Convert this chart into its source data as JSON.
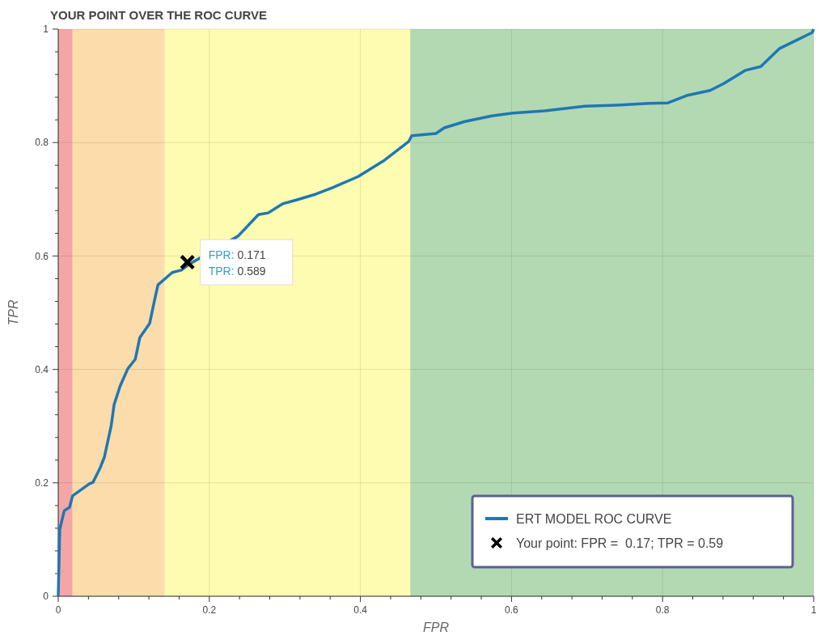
{
  "chart_data": {
    "type": "line",
    "title": "YOUR POINT OVER THE ROC CURVE",
    "xlabel": "FPR",
    "ylabel": "TPR",
    "xlim": [
      0,
      1
    ],
    "ylim": [
      0,
      1
    ],
    "xticks": [
      0,
      {
        "value": 0.04,
        "label": null
      },
      {
        "value": 0.08,
        "label": null
      },
      {
        "value": 0.12,
        "label": null
      },
      {
        "value": 0.16,
        "label": null
      },
      0.2,
      {
        "value": 0.24,
        "label": null
      },
      {
        "value": 0.28,
        "label": null
      },
      {
        "value": 0.32,
        "label": null
      },
      {
        "value": 0.36,
        "label": null
      },
      0.4,
      {
        "value": 0.44,
        "label": null
      },
      {
        "value": 0.48,
        "label": null
      },
      {
        "value": 0.52,
        "label": null
      },
      {
        "value": 0.56,
        "label": null
      },
      0.6,
      {
        "value": 0.64,
        "label": null
      },
      {
        "value": 0.68,
        "label": null
      },
      {
        "value": 0.72,
        "label": null
      },
      {
        "value": 0.76,
        "label": null
      },
      0.8,
      {
        "value": 0.84,
        "label": null
      },
      {
        "value": 0.88,
        "label": null
      },
      {
        "value": 0.92,
        "label": null
      },
      {
        "value": 0.96,
        "label": null
      },
      1
    ],
    "yticks": [
      0,
      {
        "value": 0.04,
        "label": null
      },
      {
        "value": 0.08,
        "label": null
      },
      {
        "value": 0.12,
        "label": null
      },
      {
        "value": 0.16,
        "label": null
      },
      0.2,
      {
        "value": 0.24,
        "label": null
      },
      {
        "value": 0.28,
        "label": null
      },
      {
        "value": 0.32,
        "label": null
      },
      {
        "value": 0.36,
        "label": null
      },
      0.4,
      {
        "value": 0.44,
        "label": null
      },
      {
        "value": 0.48,
        "label": null
      },
      {
        "value": 0.52,
        "label": null
      },
      {
        "value": 0.56,
        "label": null
      },
      0.6,
      {
        "value": 0.64,
        "label": null
      },
      {
        "value": 0.68,
        "label": null
      },
      {
        "value": 0.72,
        "label": null
      },
      {
        "value": 0.76,
        "label": null
      },
      0.8,
      {
        "value": 0.84,
        "label": null
      },
      {
        "value": 0.88,
        "label": null
      },
      {
        "value": 0.92,
        "label": null
      },
      {
        "value": 0.96,
        "label": null
      },
      1
    ],
    "grid": true,
    "legend": "bottom right",
    "bands": [
      {
        "axis": "x",
        "from": 0,
        "to": 0.019,
        "color": "#f4a6a6"
      },
      {
        "axis": "x",
        "from": 0.019,
        "to": 0.141,
        "color": "#fbdcaa"
      },
      {
        "axis": "x",
        "from": 0.141,
        "to": 0.466,
        "color": "#fefcb0"
      },
      {
        "axis": "x",
        "from": 0.466,
        "to": 1,
        "color": "#b3d9b2"
      }
    ],
    "series": [
      {
        "name": "ERT MODEL ROC CURVE",
        "color": "#1f77b4",
        "marker": "none",
        "line_style": "solid",
        "x": [
          0,
          0.002,
          0.008,
          0.015,
          0.019,
          0.041,
          0.046,
          0.055,
          0.061,
          0.07,
          0.074,
          0.082,
          0.092,
          0.102,
          0.108,
          0.121,
          0.127,
          0.132,
          0.151,
          0.163,
          0.174,
          0.238,
          0.265,
          0.278,
          0.297,
          0.316,
          0.341,
          0.362,
          0.397,
          0.432,
          0.464,
          0.468,
          0.5,
          0.511,
          0.538,
          0.574,
          0.602,
          0.644,
          0.697,
          0.739,
          0.782,
          0.807,
          0.832,
          0.863,
          0.881,
          0.909,
          0.93,
          0.955,
          0.972,
          0.998,
          1
        ],
        "values": [
          0,
          0.118,
          0.151,
          0.157,
          0.177,
          0.198,
          0.201,
          0.225,
          0.245,
          0.3,
          0.338,
          0.371,
          0.401,
          0.418,
          0.456,
          0.481,
          0.519,
          0.549,
          0.571,
          0.575,
          0.586,
          0.635,
          0.673,
          0.676,
          0.692,
          0.699,
          0.709,
          0.72,
          0.74,
          0.769,
          0.802,
          0.812,
          0.816,
          0.826,
          0.837,
          0.847,
          0.852,
          0.856,
          0.864,
          0.866,
          0.869,
          0.87,
          0.883,
          0.892,
          0.904,
          0.927,
          0.934,
          0.966,
          0.977,
          0.994,
          1
        ]
      },
      {
        "name": "Your point: FPR =  0.17; TPR = 0.59",
        "type": "scatter",
        "color": "#000000",
        "marker": "cross",
        "x": [
          0.171
        ],
        "values": [
          0.589
        ]
      }
    ],
    "annotations": [
      {
        "text": "FPR: 0.171\nTPR: 0.589",
        "x": 0.171,
        "y": 0.589
      }
    ]
  }
}
